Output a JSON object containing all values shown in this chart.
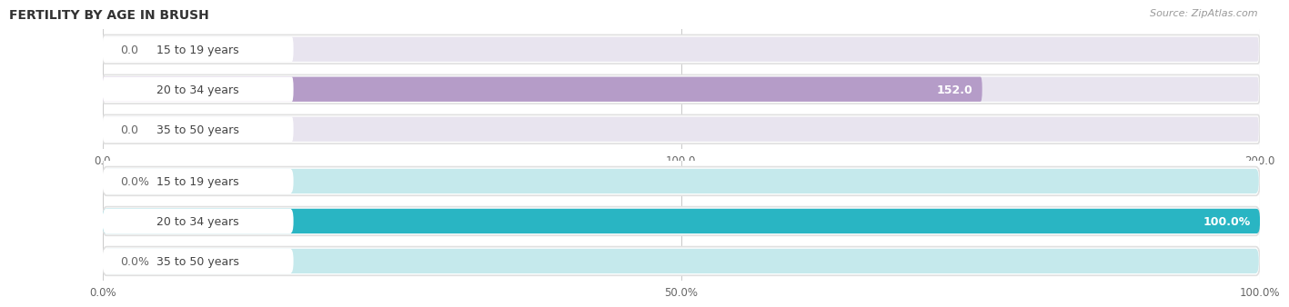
{
  "title": "FERTILITY BY AGE IN BRUSH",
  "source": "Source: ZipAtlas.com",
  "top_chart": {
    "categories": [
      "15 to 19 years",
      "20 to 34 years",
      "35 to 50 years"
    ],
    "values": [
      0.0,
      152.0,
      0.0
    ],
    "xlim": [
      0,
      200
    ],
    "xticks": [
      0.0,
      100.0,
      200.0
    ],
    "xtick_labels": [
      "0.0",
      "100.0",
      "200.0"
    ],
    "bar_color": "#b59cc8",
    "bar_bg_color": "#e8e4ef",
    "outer_bg_color": "#ededef",
    "label_color": "#555555",
    "value_color_inside": "#ffffff",
    "value_color_outside": "#777777"
  },
  "bottom_chart": {
    "categories": [
      "15 to 19 years",
      "20 to 34 years",
      "35 to 50 years"
    ],
    "values": [
      0.0,
      100.0,
      0.0
    ],
    "xlim": [
      0,
      100
    ],
    "xticks": [
      0.0,
      50.0,
      100.0
    ],
    "xtick_labels": [
      "0.0%",
      "50.0%",
      "100.0%"
    ],
    "bar_color": "#29b5c3",
    "bar_bg_color": "#c5e9ec",
    "outer_bg_color": "#e6f3f5",
    "label_color": "#555555",
    "value_color_inside": "#ffffff",
    "value_color_outside": "#777777"
  },
  "fig_bg_color": "#f7f7f7",
  "chart_bg_color": "#f0f0f0",
  "bar_height": 0.62,
  "label_fontsize": 9,
  "value_fontsize": 9,
  "title_fontsize": 10,
  "source_fontsize": 8,
  "tick_fontsize": 8.5
}
